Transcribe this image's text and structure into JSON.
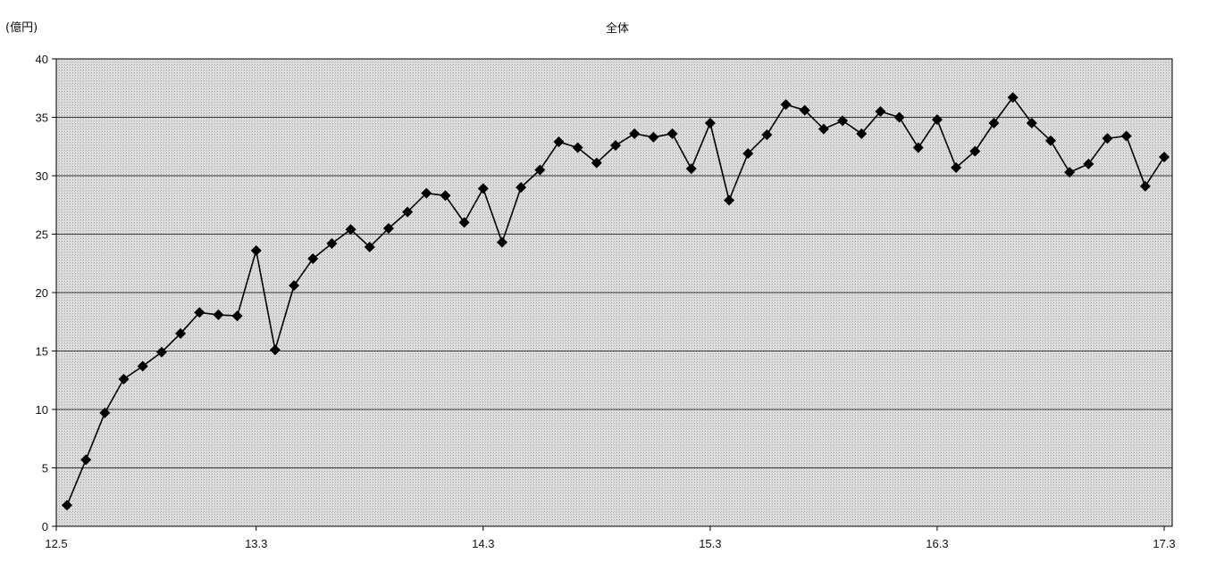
{
  "chart_data": {
    "type": "line",
    "title": "全体",
    "ylabel": "(億円)",
    "xlabel": "",
    "ylim": [
      0,
      40
    ],
    "yticks": [
      "0",
      "5",
      "10",
      "15",
      "20",
      "25",
      "30",
      "35",
      "40"
    ],
    "xticks": [
      "12.5",
      "13.3",
      "14.3",
      "15.3",
      "16.3",
      "17.3"
    ],
    "grid": true,
    "legend": "none",
    "marker": "diamond",
    "line_color": "#000000",
    "plot_background": "#d4d4d4",
    "series": [
      {
        "values": [
          1.8,
          5.7,
          9.7,
          12.6,
          13.7,
          14.9,
          16.5,
          18.3,
          18.1,
          18.0,
          23.6,
          15.1,
          20.6,
          22.9,
          24.2,
          25.4,
          23.9,
          25.5,
          26.9,
          28.5,
          28.3,
          26.0,
          28.9,
          24.3,
          29.0,
          30.5,
          32.9,
          32.4,
          31.1,
          32.6,
          33.6,
          33.3,
          33.6,
          30.6,
          34.5,
          27.9,
          31.9,
          33.5,
          36.1,
          35.6,
          34.0,
          34.7,
          33.6,
          35.5,
          35.0,
          32.4,
          34.8,
          30.7,
          32.1,
          34.5,
          36.7,
          34.5,
          33.0,
          30.3,
          31.0,
          33.2,
          33.4,
          29.1,
          31.6
        ]
      }
    ]
  }
}
